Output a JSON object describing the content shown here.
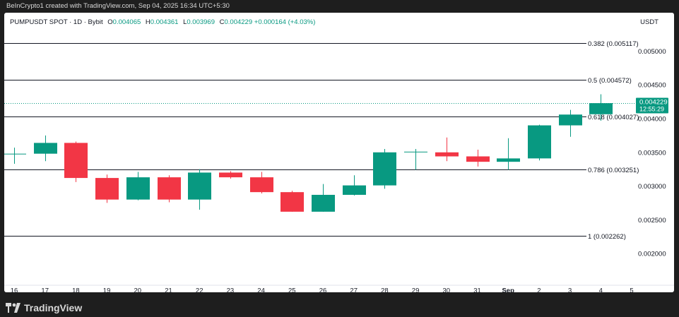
{
  "header": {
    "attribution": "BeInCrypto1 created with TradingView.com, Sep 04, 2025 16:34 UTC+5:30"
  },
  "legend": {
    "symbol": "PUMPUSDT SPOT · 1D · Bybit",
    "open_key": "O",
    "open": "0.004065",
    "high_key": "H",
    "high": "0.004361",
    "low_key": "L",
    "low": "0.003969",
    "close_key": "C",
    "close": "0.004229",
    "change": "+0.000164 (+4.03%)"
  },
  "currency": "USDT",
  "price_tag": {
    "price": "0.004229",
    "countdown": "12:55:29"
  },
  "footer": {
    "brand": "TradingView"
  },
  "colors": {
    "up": "#089981",
    "down": "#f23645",
    "fib_line": "#131722",
    "tag": "#089981"
  },
  "chart_data": {
    "type": "candlestick",
    "x_tick_labels": [
      "16",
      "17",
      "18",
      "19",
      "20",
      "21",
      "22",
      "23",
      "24",
      "25",
      "26",
      "27",
      "28",
      "29",
      "30",
      "31",
      "Sep",
      "2",
      "3",
      "4",
      "5"
    ],
    "y_tick_labels": [
      "0.005000",
      "0.004500",
      "0.004000",
      "0.003500",
      "0.003000",
      "0.002500",
      "0.002000"
    ],
    "y_ticks": [
      0.005,
      0.0045,
      0.004,
      0.0035,
      0.003,
      0.0025,
      0.002
    ],
    "ylim": [
      0.00153,
      0.00557
    ],
    "candles": [
      {
        "x": "16",
        "open": 0.00348,
        "high": 0.00357,
        "low": 0.00333,
        "close": 0.00348
      },
      {
        "x": "17",
        "open": 0.00348,
        "high": 0.00375,
        "low": 0.00337,
        "close": 0.00364
      },
      {
        "x": "18",
        "open": 0.00364,
        "high": 0.00366,
        "low": 0.00306,
        "close": 0.00312
      },
      {
        "x": "19",
        "open": 0.00312,
        "high": 0.00317,
        "low": 0.00275,
        "close": 0.0028
      },
      {
        "x": "20",
        "open": 0.0028,
        "high": 0.00321,
        "low": 0.00279,
        "close": 0.00313
      },
      {
        "x": "21",
        "open": 0.00313,
        "high": 0.00316,
        "low": 0.00276,
        "close": 0.0028
      },
      {
        "x": "22",
        "open": 0.0028,
        "high": 0.00325,
        "low": 0.00265,
        "close": 0.0032
      },
      {
        "x": "23",
        "open": 0.0032,
        "high": 0.00322,
        "low": 0.00311,
        "close": 0.00313
      },
      {
        "x": "24",
        "open": 0.00313,
        "high": 0.00321,
        "low": 0.00289,
        "close": 0.00291
      },
      {
        "x": "25",
        "open": 0.00291,
        "high": 0.00293,
        "low": 0.00262,
        "close": 0.00262
      },
      {
        "x": "26",
        "open": 0.00262,
        "high": 0.00303,
        "low": 0.00262,
        "close": 0.00287
      },
      {
        "x": "27",
        "open": 0.00287,
        "high": 0.00316,
        "low": 0.00286,
        "close": 0.00301
      },
      {
        "x": "28",
        "open": 0.00301,
        "high": 0.00355,
        "low": 0.00296,
        "close": 0.0035
      },
      {
        "x": "29",
        "open": 0.0035,
        "high": 0.00355,
        "low": 0.00324,
        "close": 0.00351
      },
      {
        "x": "30",
        "open": 0.0035,
        "high": 0.00372,
        "low": 0.00337,
        "close": 0.00344
      },
      {
        "x": "31",
        "open": 0.00344,
        "high": 0.00354,
        "low": 0.00329,
        "close": 0.00336
      },
      {
        "x": "Sep",
        "open": 0.00336,
        "high": 0.00371,
        "low": 0.00324,
        "close": 0.00341
      },
      {
        "x": "2",
        "open": 0.00341,
        "high": 0.00391,
        "low": 0.00338,
        "close": 0.0039
      },
      {
        "x": "3",
        "open": 0.0039,
        "high": 0.00413,
        "low": 0.00373,
        "close": 0.00406
      },
      {
        "x": "4",
        "open": 0.004065,
        "high": 0.004361,
        "low": 0.003969,
        "close": 0.004229
      }
    ],
    "fib_levels": [
      {
        "label": "0.382 (0.005117)",
        "value": 0.005117
      },
      {
        "label": "0.5 (0.004572)",
        "value": 0.004572
      },
      {
        "label": "0.618 (0.004027)",
        "value": 0.004027
      },
      {
        "label": "0.786 (0.003251)",
        "value": 0.003251
      },
      {
        "label": "1 (0.002262)",
        "value": 0.002262
      }
    ],
    "current_price": 0.004229
  }
}
